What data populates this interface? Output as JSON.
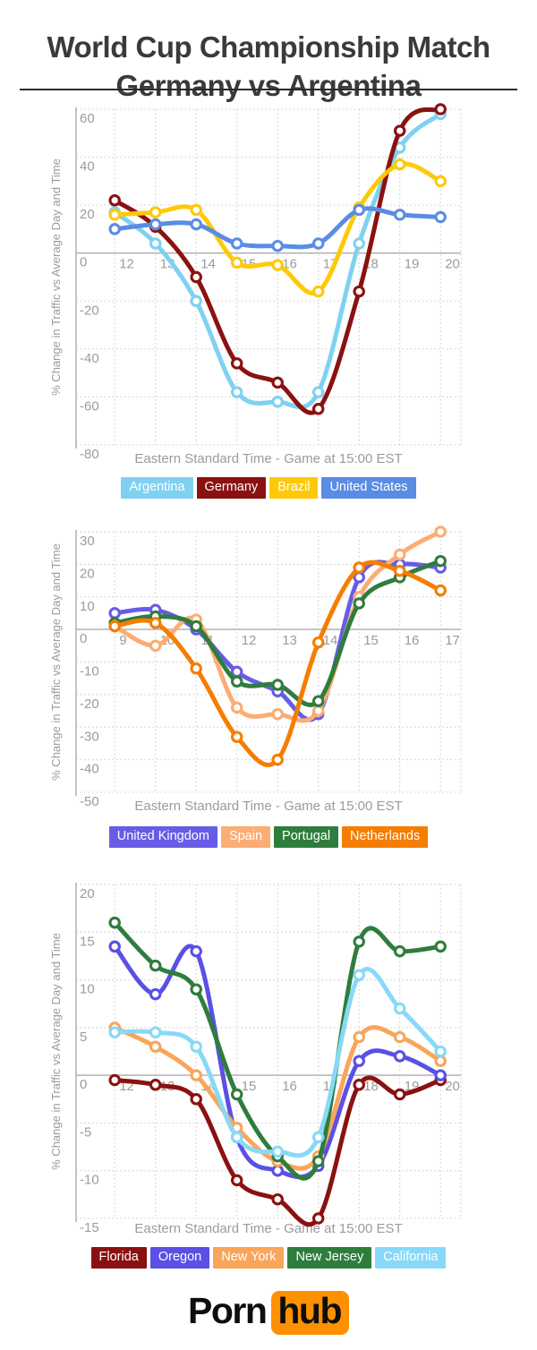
{
  "page_title": {
    "line1": "World Cup Championship Match",
    "line2": "Germany vs Argentina"
  },
  "footer_logo": {
    "text_black": "Porn",
    "text_badge": "hub",
    "badge_color": "#FF9000"
  },
  "chart_data": [
    {
      "type": "line",
      "x": [
        12,
        13,
        14,
        15,
        16,
        17,
        18,
        19,
        20
      ],
      "xlabel": "Eastern Standard Time - Game at 15:00 EST",
      "ylabel": "% Change in Traffic vs Average Day and Time",
      "ylim": [
        -80,
        60
      ],
      "ytick_step": 20,
      "grid": true,
      "legend_position": "bottom",
      "marker": "open-circle",
      "series": [
        {
          "name": "Argentina",
          "color": "#7FD1F2",
          "values": [
            17,
            4,
            -20,
            -58,
            -62,
            -58,
            4,
            44,
            58
          ]
        },
        {
          "name": "Germany",
          "color": "#8B1111",
          "values": [
            22,
            11,
            -10,
            -46,
            -54,
            -65,
            -16,
            51,
            60
          ]
        },
        {
          "name": "Brazil",
          "color": "#FFC908",
          "values": [
            16,
            17,
            18,
            -4,
            -5,
            -16,
            19,
            37,
            30
          ]
        },
        {
          "name": "United States",
          "color": "#5B8CE4",
          "values": [
            10,
            12,
            12,
            4,
            3,
            4,
            18,
            16,
            15
          ]
        }
      ]
    },
    {
      "type": "line",
      "x": [
        9,
        10,
        11,
        12,
        13,
        14,
        15,
        16,
        17
      ],
      "xlabel": "Eastern Standard Time - Game at 15:00 EST",
      "ylabel": "% Change in Traffic vs Average Day and Time",
      "ylim": [
        -50,
        30
      ],
      "ytick_step": 10,
      "grid": true,
      "legend_position": "bottom",
      "marker": "open-circle",
      "series": [
        {
          "name": "United Kingdom",
          "color": "#675CE5",
          "values": [
            5,
            6,
            0,
            -13,
            -19,
            -26,
            16,
            20,
            19
          ]
        },
        {
          "name": "Spain",
          "color": "#FBAD73",
          "values": [
            1,
            -5,
            3,
            -24,
            -26,
            -25,
            10,
            23,
            30
          ]
        },
        {
          "name": "Portugal",
          "color": "#2F7D3D",
          "values": [
            2,
            4,
            1,
            -16,
            -17,
            -22,
            8,
            16,
            21
          ]
        },
        {
          "name": "Netherlands",
          "color": "#F57D00",
          "values": [
            1,
            2,
            -12,
            -33,
            -40,
            -4,
            19,
            18,
            12
          ]
        }
      ]
    },
    {
      "type": "line",
      "x": [
        12,
        13,
        14,
        15,
        16,
        17,
        18,
        19,
        20
      ],
      "xlabel": "Eastern Standard Time - Game at 15:00 EST",
      "ylabel": "% Change in Traffic vs Average Day and Time",
      "ylim": [
        -15,
        20
      ],
      "ytick_step": 5,
      "grid": true,
      "legend_position": "bottom",
      "marker": "open-circle",
      "series": [
        {
          "name": "Florida",
          "color": "#8B1111",
          "values": [
            -0.5,
            -1,
            -2.5,
            -11,
            -13,
            -15,
            -1,
            -2,
            -0.5
          ]
        },
        {
          "name": "Oregon",
          "color": "#5A50E5",
          "values": [
            13.5,
            8.5,
            13,
            -6.5,
            -10,
            -9.5,
            1.5,
            2,
            0
          ]
        },
        {
          "name": "New York",
          "color": "#F9A55A",
          "values": [
            5,
            3,
            0,
            -5.5,
            -9,
            -8.5,
            4,
            4,
            1.5
          ]
        },
        {
          "name": "New Jersey",
          "color": "#2F7D3D",
          "values": [
            16,
            11.5,
            9,
            -2,
            -8.5,
            -9,
            14,
            13,
            13.5
          ]
        },
        {
          "name": "California",
          "color": "#87D9F7",
          "values": [
            4.5,
            4.5,
            3,
            -6.5,
            -8,
            -6.5,
            10.5,
            7,
            2.5
          ]
        }
      ]
    }
  ]
}
